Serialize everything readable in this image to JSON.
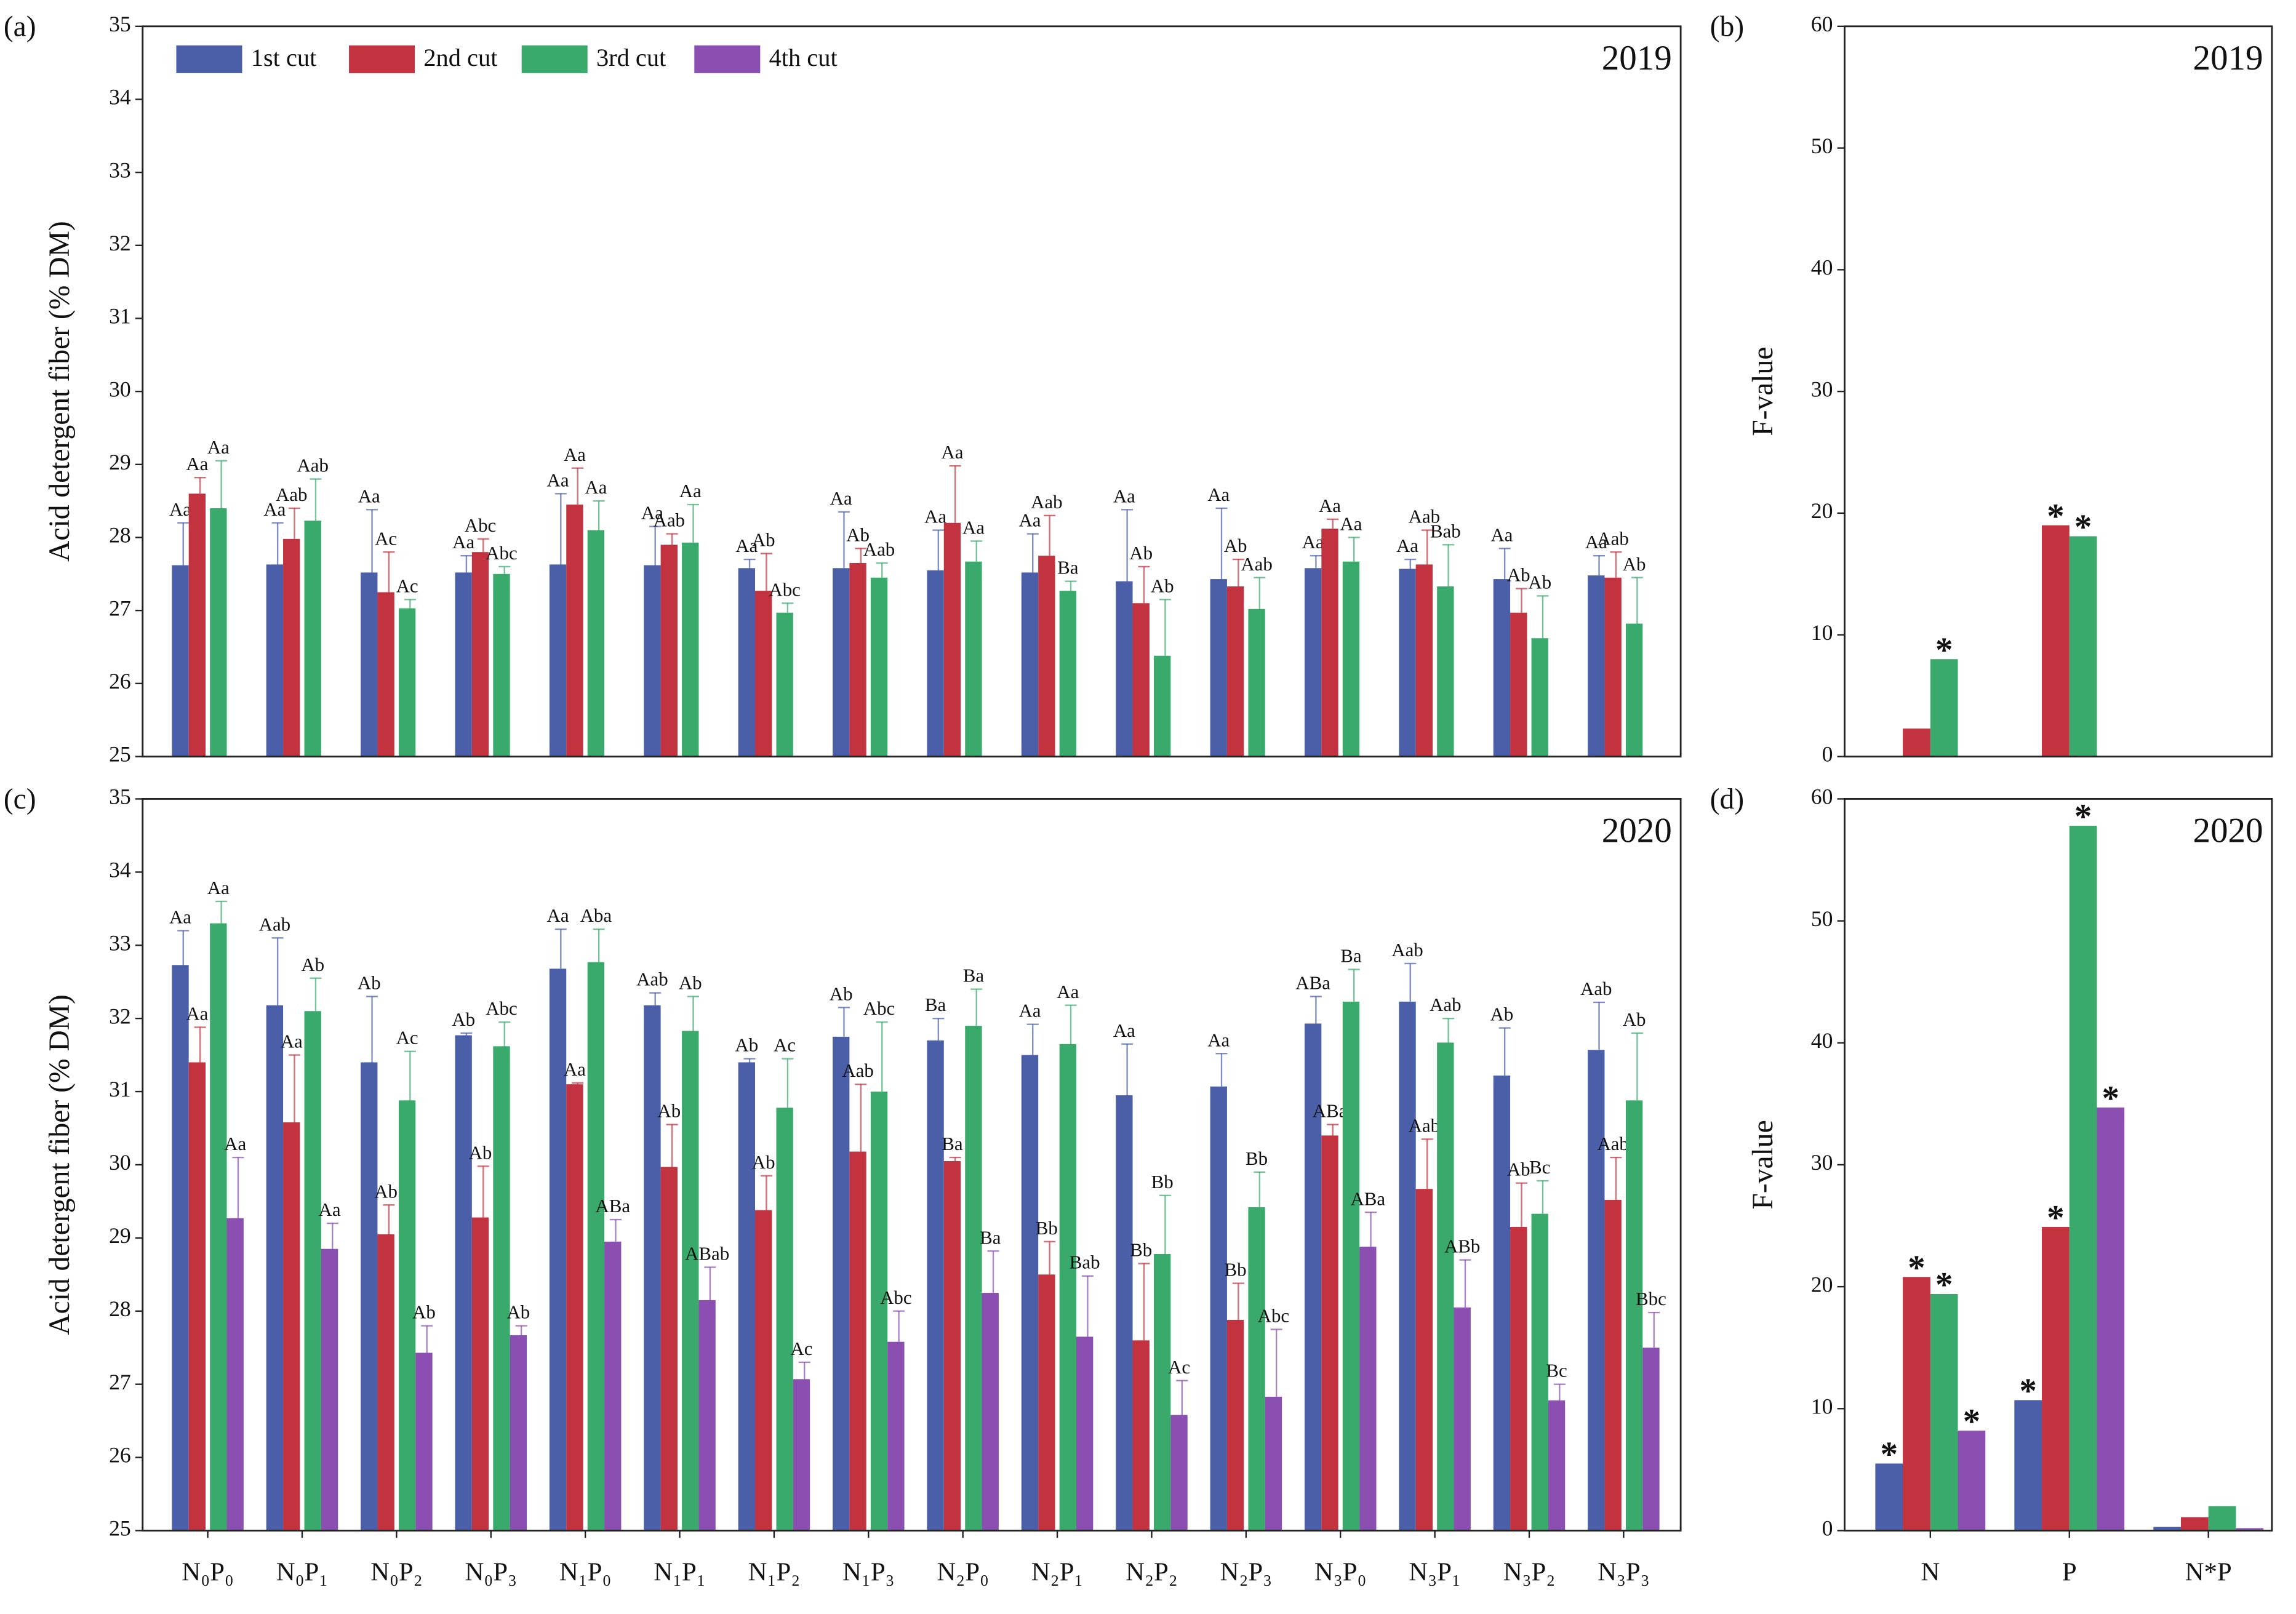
{
  "chart_data": [
    {
      "type": "bar",
      "panel_label": "(a)",
      "year_label": "2019",
      "ylabel": "Acid detergent fiber (% DM)",
      "ylim": [
        25,
        35
      ],
      "yticks": [
        25,
        26,
        27,
        28,
        29,
        30,
        31,
        32,
        33,
        34,
        35
      ],
      "legend": "upper left",
      "series": [
        {
          "name": "1st cut",
          "color": "#4a5fa8",
          "values": [
            27.62,
            27.63,
            27.52,
            27.52,
            27.63,
            27.62,
            27.58,
            27.58,
            27.55,
            27.52,
            27.4,
            27.43,
            27.58,
            27.57,
            27.43,
            27.48
          ],
          "errors": [
            0.58,
            0.57,
            0.86,
            0.23,
            0.97,
            0.53,
            0.12,
            0.77,
            0.55,
            0.53,
            0.98,
            0.97,
            0.17,
            0.13,
            0.42,
            0.27
          ],
          "letters": [
            "Aa",
            "Aa",
            "Aa",
            "Aa",
            "Aa",
            "Aa",
            "Aa",
            "Aa",
            "Aa",
            "Aa",
            "Aa",
            "Aa",
            "Aa",
            "Aa",
            "Aa",
            "Aa"
          ]
        },
        {
          "name": "2nd cut",
          "color": "#c2323f",
          "values": [
            28.6,
            27.98,
            27.25,
            27.8,
            28.45,
            27.9,
            27.27,
            27.65,
            28.2,
            27.75,
            27.1,
            27.33,
            28.12,
            27.63,
            26.97,
            27.45
          ],
          "errors": [
            0.22,
            0.42,
            0.55,
            0.18,
            0.5,
            0.15,
            0.51,
            0.2,
            0.78,
            0.55,
            0.5,
            0.37,
            0.13,
            0.47,
            0.33,
            0.35
          ],
          "letters": [
            "Aa",
            "Aab",
            "Ac",
            "Abc",
            "Aa",
            "Aab",
            "Ab",
            "Ab",
            "Aa",
            "Aab",
            "Ab",
            "Ab",
            "Aa",
            "Aab",
            "Ab",
            "Aab"
          ]
        },
        {
          "name": "3rd cut",
          "color": "#3aaa6c",
          "values": [
            28.4,
            28.23,
            27.03,
            27.5,
            28.1,
            27.93,
            26.97,
            27.45,
            27.67,
            27.27,
            26.38,
            27.02,
            27.67,
            27.33,
            26.62,
            26.82
          ],
          "errors": [
            0.65,
            0.57,
            0.12,
            0.1,
            0.4,
            0.52,
            0.13,
            0.2,
            0.28,
            0.13,
            0.77,
            0.43,
            0.33,
            0.57,
            0.58,
            0.63
          ],
          "letters": [
            "Aa",
            "Aab",
            "Ac",
            "Abc",
            "Aa",
            "Aa",
            "Abc",
            "Aab",
            "Aa",
            "Ba",
            "Ab",
            "Aab",
            "Aa",
            "Bab",
            "Ab",
            "Ab"
          ]
        },
        {
          "name": "4th cut",
          "color": "#8a4fb0"
        }
      ]
    },
    {
      "type": "bar",
      "panel_label": "(b)",
      "year_label": "2019",
      "ylabel": "F-value",
      "ylim": [
        0,
        60
      ],
      "yticks": [
        0,
        10,
        20,
        30,
        40,
        50,
        60
      ],
      "series": [
        {
          "color": "#4a5fa8",
          "values": [
            0,
            0,
            0
          ],
          "significance": [
            null,
            null,
            null
          ]
        },
        {
          "color": "#c2323f",
          "values": [
            2.3,
            19.0,
            0
          ],
          "significance": [
            null,
            "*",
            null
          ]
        },
        {
          "color": "#3aaa6c",
          "values": [
            8.0,
            18.1,
            0
          ],
          "significance": [
            "*",
            "*",
            null
          ]
        }
      ]
    },
    {
      "type": "bar",
      "panel_label": "(c)",
      "year_label": "2020",
      "ylabel": "Acid detergent fiber (% DM)",
      "ylim": [
        25,
        35
      ],
      "yticks": [
        25,
        26,
        27,
        28,
        29,
        30,
        31,
        32,
        33,
        34,
        35
      ],
      "categories": [
        "N₀P₀",
        "N₀P₁",
        "N₀P₂",
        "N₀P₃",
        "N₁P₀",
        "N₁P₁",
        "N₁P₂",
        "N₁P₃",
        "N₂P₀",
        "N₂P₁",
        "N₂P₂",
        "N₂P₃",
        "N₃P₀",
        "N₃P₁",
        "N₃P₂",
        "N₃P₃"
      ],
      "series": [
        {
          "color": "#4a5fa8",
          "values": [
            32.73,
            32.18,
            31.4,
            31.77,
            32.68,
            32.18,
            31.4,
            31.75,
            31.7,
            31.5,
            30.95,
            31.07,
            31.93,
            32.23,
            31.22,
            31.57
          ],
          "errors": [
            0.47,
            0.92,
            0.9,
            0.03,
            0.54,
            0.17,
            0.05,
            0.4,
            0.3,
            0.42,
            0.7,
            0.45,
            0.37,
            0.52,
            0.65,
            0.65
          ],
          "letters": [
            "Aa",
            "Aab",
            "Ab",
            "Ab",
            "Aa",
            "Aab",
            "Ab",
            "Ab",
            "Ba",
            "Aa",
            "Aa",
            "Aa",
            "ABa",
            "Aab",
            "Ab",
            "Aab"
          ]
        },
        {
          "color": "#c2323f",
          "values": [
            31.4,
            30.58,
            29.05,
            29.28,
            31.1,
            29.97,
            29.38,
            30.18,
            30.05,
            28.5,
            27.6,
            27.88,
            30.4,
            29.67,
            29.15,
            29.52
          ],
          "errors": [
            0.48,
            0.92,
            0.4,
            0.7,
            0.02,
            0.58,
            0.47,
            0.92,
            0.05,
            0.45,
            1.05,
            0.5,
            0.15,
            0.68,
            0.6,
            0.58
          ],
          "letters": [
            "Aa",
            "Aa",
            "Ab",
            "Ab",
            "Aa",
            "Ab",
            "Ab",
            "Aab",
            "Ba",
            "Bb",
            "Bb",
            "Bb",
            "ABa",
            "Aab",
            "Ab",
            "Aab"
          ]
        },
        {
          "color": "#3aaa6c",
          "values": [
            33.3,
            32.1,
            30.88,
            31.62,
            32.77,
            31.83,
            30.78,
            31.0,
            31.9,
            31.65,
            28.78,
            29.42,
            32.23,
            31.67,
            29.33,
            30.88
          ],
          "errors": [
            0.3,
            0.45,
            0.67,
            0.33,
            0.45,
            0.47,
            0.67,
            0.95,
            0.5,
            0.53,
            0.8,
            0.48,
            0.44,
            0.33,
            0.45,
            0.92
          ],
          "letters": [
            "Aa",
            "Ab",
            "Ac",
            "Abc",
            "Aba",
            "Ab",
            "Ac",
            "Abc",
            "Ba",
            "Aa",
            "Bb",
            "Bb",
            "Ba",
            "Aab",
            "Bc",
            "Ab"
          ]
        },
        {
          "color": "#8a4fb0",
          "values": [
            29.27,
            28.85,
            27.43,
            27.67,
            28.95,
            28.15,
            27.07,
            27.58,
            28.25,
            27.65,
            26.58,
            26.83,
            28.88,
            28.05,
            26.78,
            27.5
          ],
          "errors": [
            0.83,
            0.35,
            0.37,
            0.13,
            0.3,
            0.45,
            0.23,
            0.42,
            0.57,
            0.83,
            0.47,
            0.92,
            0.47,
            0.65,
            0.22,
            0.48
          ],
          "letters": [
            "Aa",
            "Aa",
            "Ab",
            "Ab",
            "ABa",
            "ABab",
            "Ac",
            "Abc",
            "Ba",
            "Bab",
            "Ac",
            "Abc",
            "ABa",
            "ABb",
            "Bc",
            "Bbc"
          ]
        }
      ]
    },
    {
      "type": "bar",
      "panel_label": "(d)",
      "year_label": "2020",
      "ylabel": "F-value",
      "ylim": [
        0,
        60
      ],
      "yticks": [
        0,
        10,
        20,
        30,
        40,
        50,
        60
      ],
      "categories": [
        "N",
        "P",
        "N*P"
      ],
      "series": [
        {
          "color": "#4a5fa8",
          "values": [
            5.5,
            10.7,
            0.3
          ],
          "significance": [
            "*",
            "*",
            null
          ]
        },
        {
          "color": "#c2323f",
          "values": [
            20.8,
            24.9,
            1.1
          ],
          "significance": [
            "*",
            "*",
            null
          ]
        },
        {
          "color": "#3aaa6c",
          "values": [
            19.4,
            57.8,
            2.0
          ],
          "significance": [
            "*",
            "*",
            null
          ]
        },
        {
          "color": "#8a4fb0",
          "values": [
            8.2,
            34.7,
            0.2
          ],
          "significance": [
            "*",
            "*",
            null
          ]
        }
      ]
    }
  ]
}
